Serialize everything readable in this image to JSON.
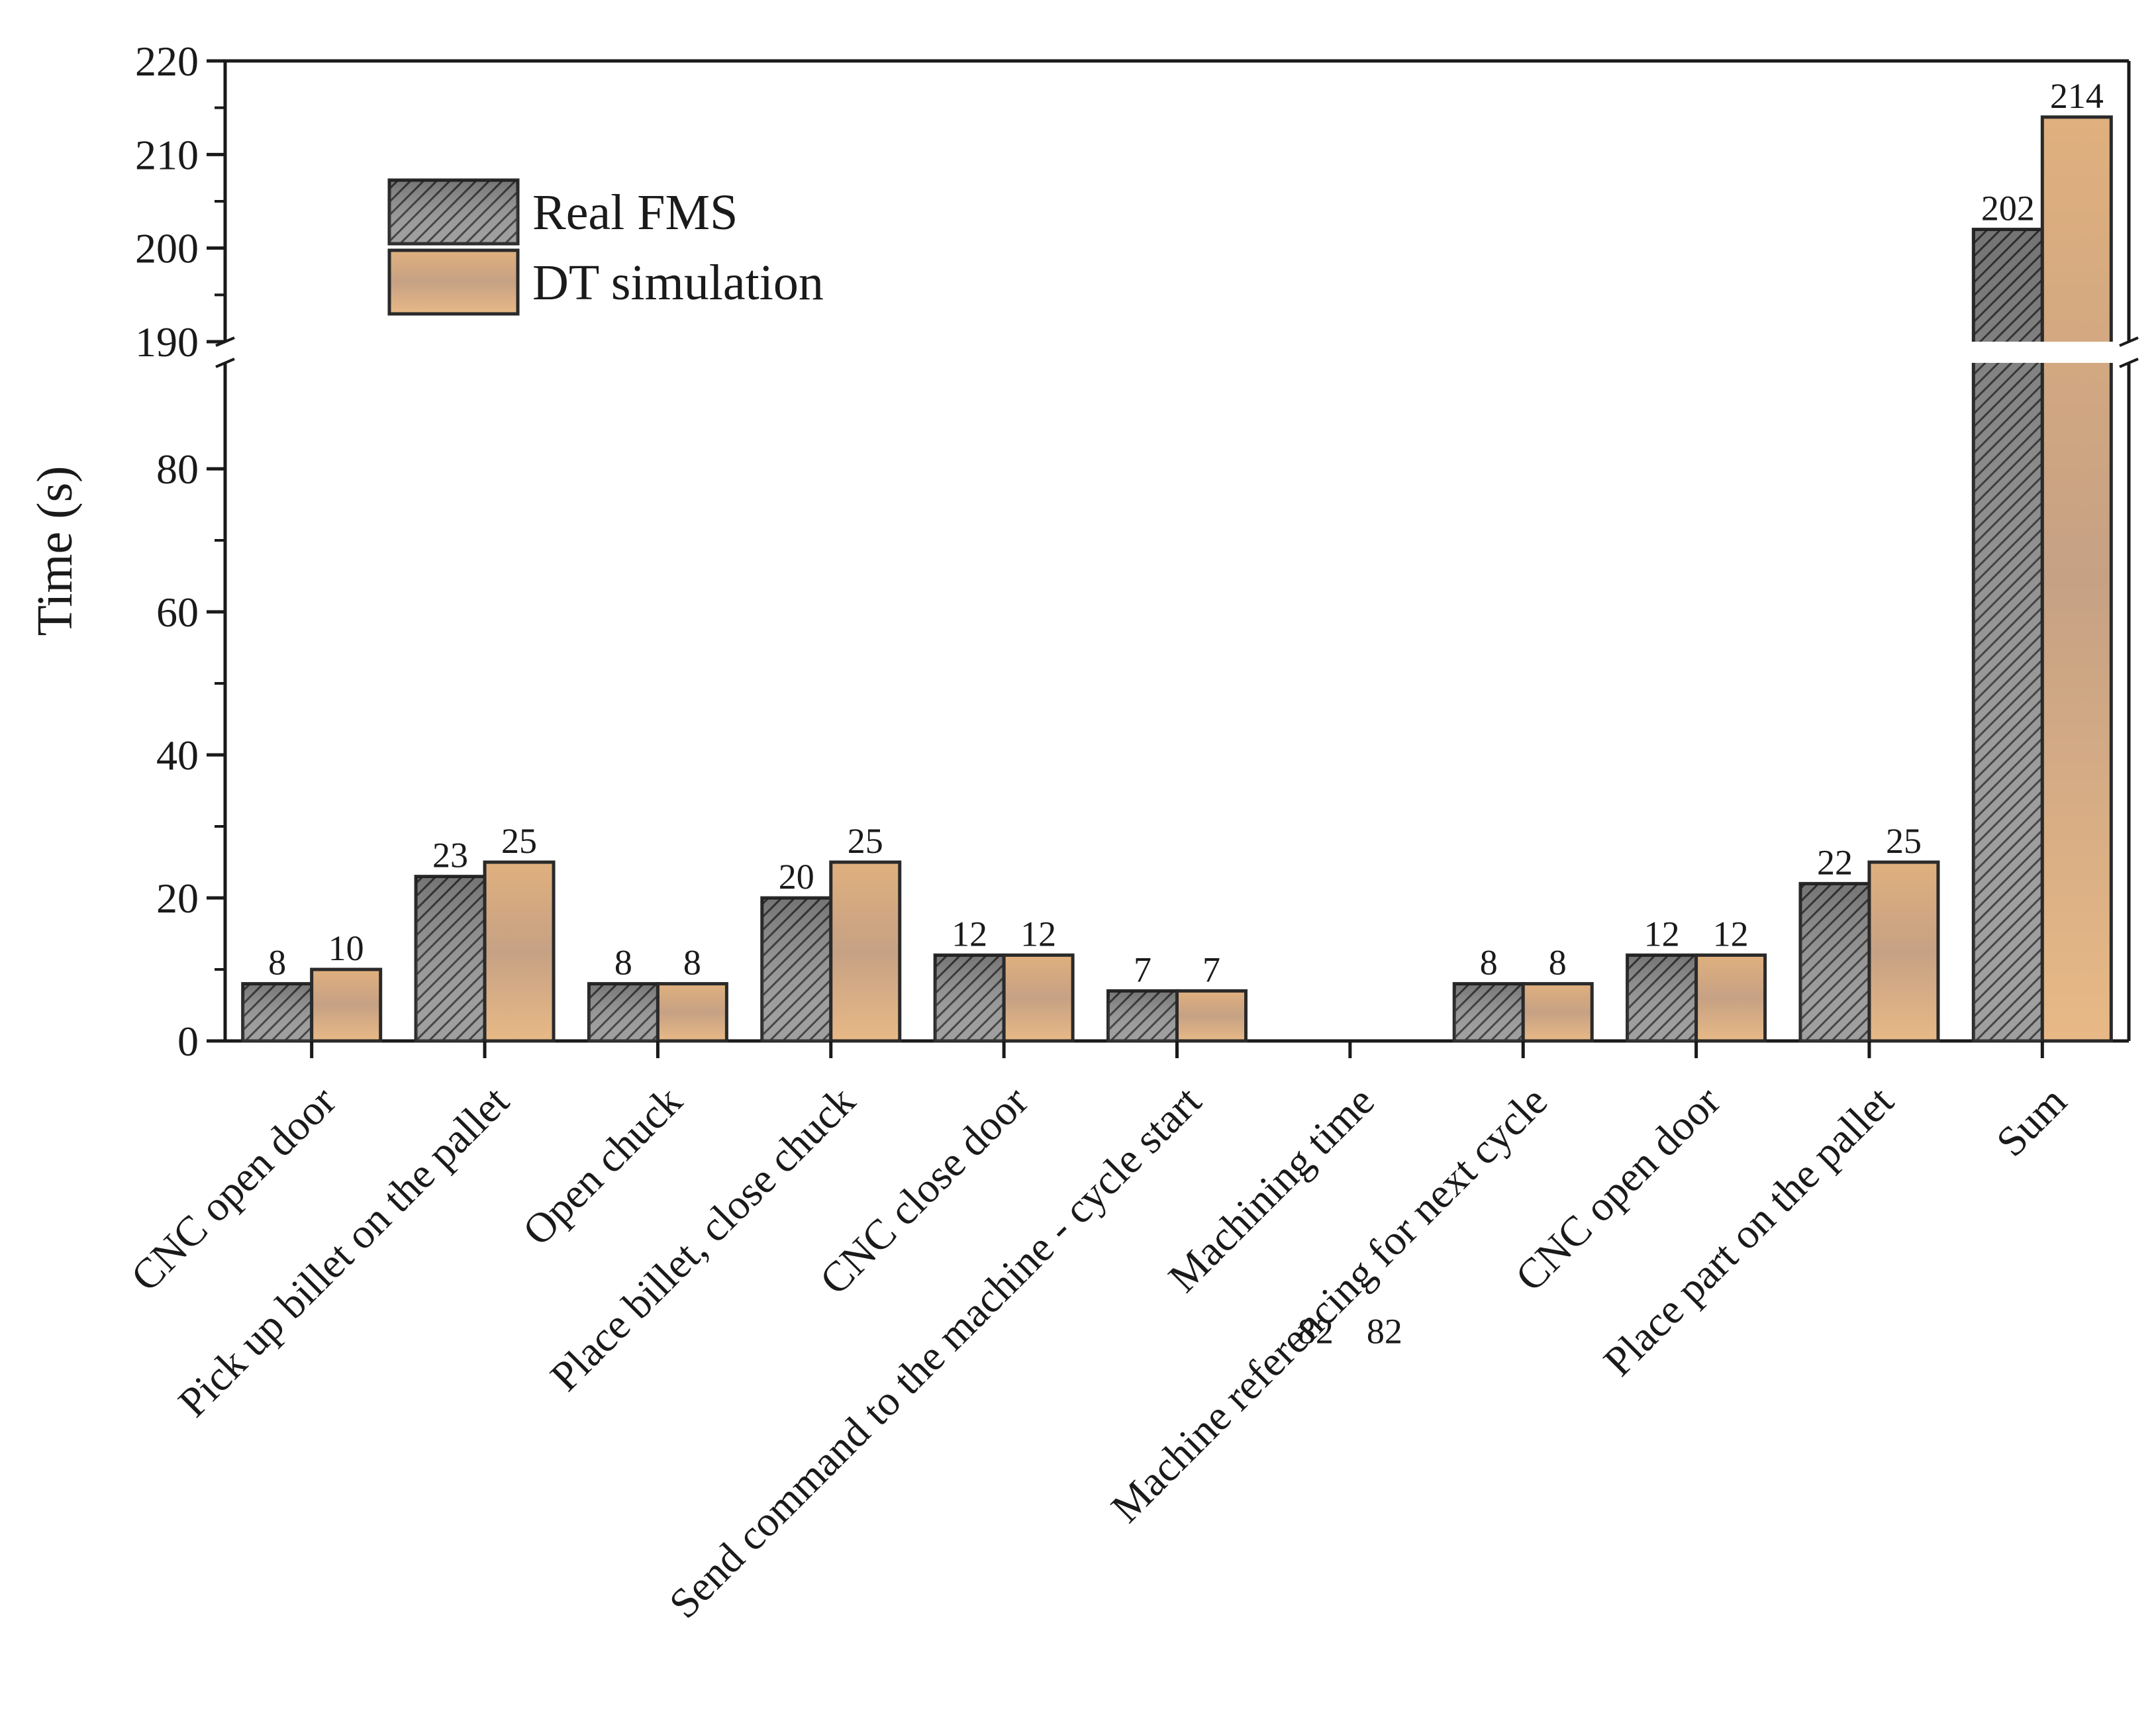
{
  "chart_data": {
    "type": "bar",
    "title": "",
    "xlabel": "",
    "ylabel": "Time (s)",
    "ylim": [
      0,
      220
    ],
    "axis_break": [
      80,
      190
    ],
    "yticks": [
      "0",
      "20",
      "40",
      "60",
      "80",
      "190",
      "200",
      "210",
      "220"
    ],
    "legend_position": "top-left",
    "categories": [
      "CNC open door",
      "Pick up billet on the pallet",
      "Open chuck",
      "Place billet, close chuck",
      "CNC close door",
      "Send command to the machine - cycle start",
      "Machining time",
      "Machine referencing for next cycle",
      "CNC open door",
      "Place part on the pallet",
      "Sum"
    ],
    "series": [
      {
        "name": "Real FMS",
        "values": [
          8,
          23,
          8,
          20,
          12,
          7,
          82,
          8,
          12,
          22,
          202
        ],
        "labels": [
          "8",
          "23",
          "8",
          "20",
          "12",
          "7",
          "82",
          "8",
          "12",
          "22",
          "202"
        ],
        "color": "#8a8a8a"
      },
      {
        "name": "DT simulation",
        "values": [
          10,
          25,
          8,
          25,
          12,
          7,
          82,
          8,
          12,
          25,
          214
        ],
        "labels": [
          "10",
          "25",
          "8",
          "25",
          "12",
          "7",
          "82",
          "8",
          "12",
          "25",
          "214"
        ],
        "color": "#e2b586"
      }
    ]
  }
}
